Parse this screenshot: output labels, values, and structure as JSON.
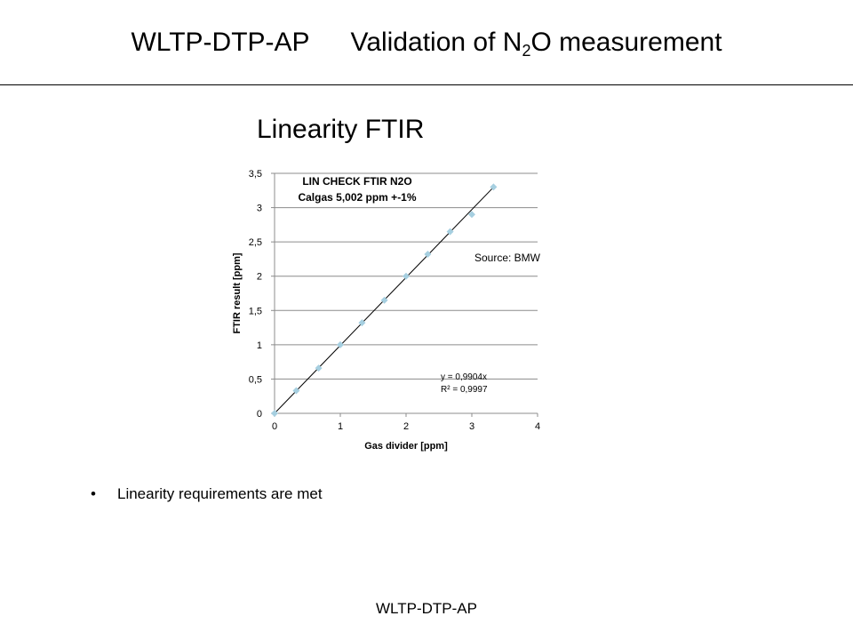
{
  "slide": {
    "title_left": "WLTP-DTP-AP",
    "title_right_pre": "Validation of N",
    "title_right_sub": "2",
    "title_right_post": "O measurement",
    "subtitle": "Linearity FTIR",
    "bullet_text": "Linearity requirements are met",
    "footer": "WLTP-DTP-AP"
  },
  "chart_data": {
    "type": "scatter",
    "title_lines": [
      "LIN CHECK FTIR N2O",
      "Calgas 5,002 ppm +-1%"
    ],
    "xlabel": "Gas divider [ppm]",
    "ylabel": "FTIR result [ppm]",
    "xlim": [
      0,
      4
    ],
    "ylim": [
      0,
      3.5
    ],
    "x_ticks": [
      0,
      1,
      2,
      3,
      4
    ],
    "x_tick_labels": [
      "0",
      "1",
      "2",
      "3",
      "4"
    ],
    "y_ticks": [
      0,
      0.5,
      1,
      1.5,
      2,
      2.5,
      3,
      3.5
    ],
    "y_tick_labels": [
      "0",
      "0,5",
      "1",
      "1,5",
      "2",
      "2,5",
      "3",
      "3,5"
    ],
    "grid": "horizontal",
    "point_color": "#a6cfe0",
    "series": [
      {
        "x": [
          0,
          0.33,
          0.67,
          1.0,
          1.33,
          1.67,
          2.0,
          2.33,
          2.67,
          3.0,
          3.33
        ],
        "y": [
          0,
          0.33,
          0.66,
          1.0,
          1.32,
          1.65,
          2.0,
          2.32,
          2.65,
          2.9,
          3.3
        ]
      }
    ],
    "trendline": {
      "slope": 0.9904,
      "x_range": [
        0,
        3.35
      ],
      "equation": "y = 0,9904x",
      "r_squared": "R² = 0,9997"
    },
    "annotation": "Source: BMW"
  }
}
